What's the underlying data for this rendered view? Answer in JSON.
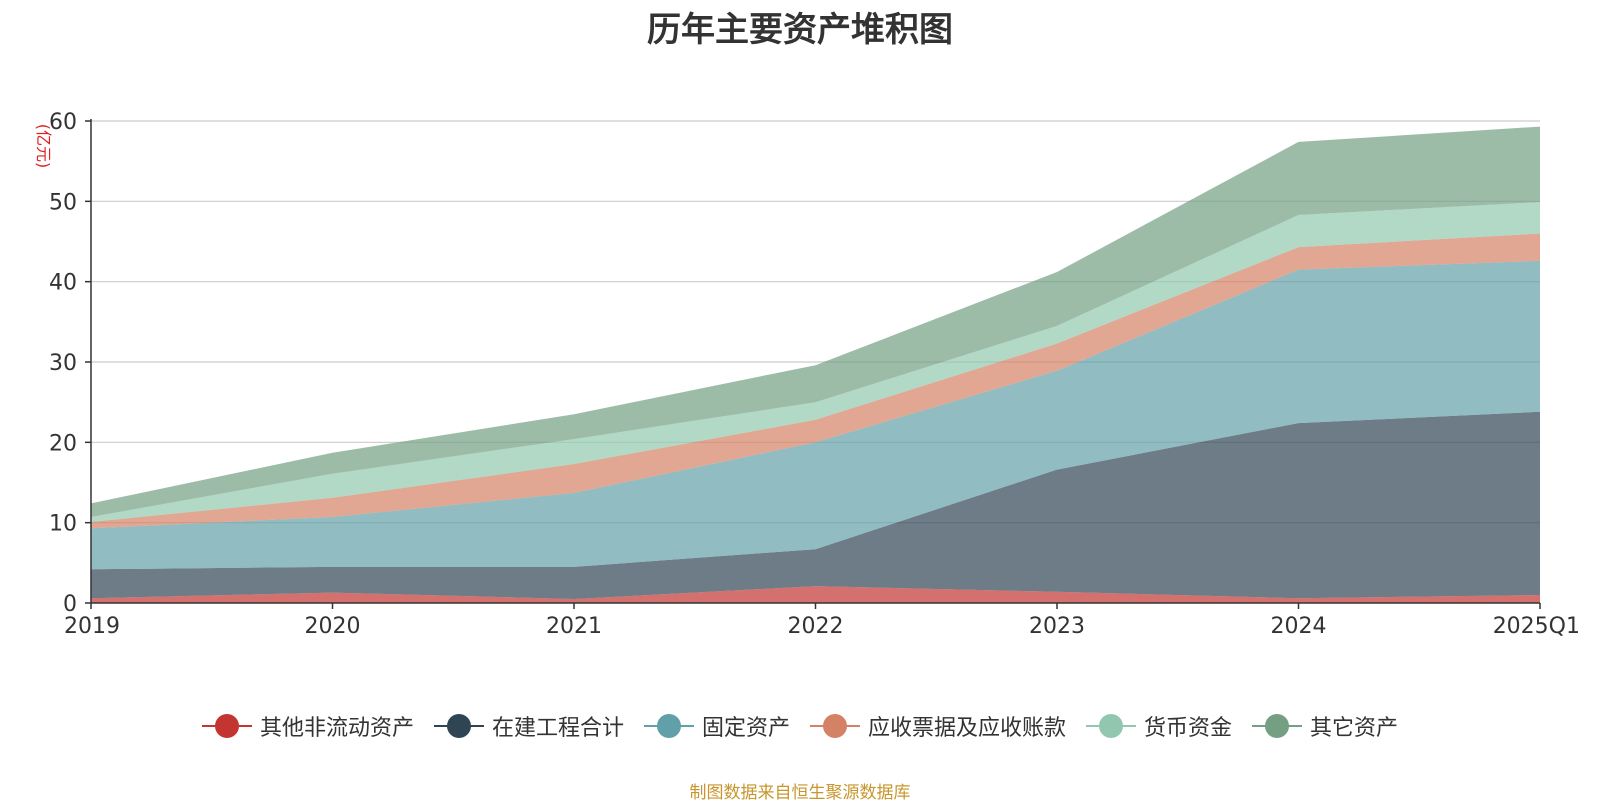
{
  "chart_data": {
    "type": "area",
    "stacked": true,
    "title": "历年主要资产堆积图",
    "ylabel": "亿元",
    "ylabel_display": "(亿元)",
    "categories": [
      "2019",
      "2020",
      "2021",
      "2022",
      "2023",
      "2024",
      "2025Q1"
    ],
    "ylim": [
      0,
      60
    ],
    "yticks": [
      "0",
      "10",
      "20",
      "30",
      "40",
      "50",
      "60"
    ],
    "grid": true,
    "legend_position": "bottom",
    "series": [
      {
        "name": "其他非流动资产",
        "color": "#c23531",
        "values": [
          0.6,
          1.3,
          0.5,
          2.1,
          1.4,
          0.6,
          1.0
        ]
      },
      {
        "name": "在建工程合计",
        "color": "#2f4554",
        "values": [
          3.6,
          3.2,
          4.0,
          4.6,
          15.2,
          21.8,
          22.8
        ]
      },
      {
        "name": "固定资产",
        "color": "#61a0a8",
        "values": [
          5.1,
          6.2,
          9.2,
          13.3,
          12.3,
          19.1,
          18.8
        ]
      },
      {
        "name": "应收票据及应收账款",
        "color": "#d48265",
        "values": [
          0.8,
          2.4,
          3.6,
          2.8,
          3.4,
          2.8,
          3.4
        ]
      },
      {
        "name": "货币资金",
        "color": "#91c7ae",
        "values": [
          0.6,
          3.0,
          3.1,
          2.2,
          2.2,
          4.0,
          3.9
        ]
      },
      {
        "name": "其它资产",
        "color": "#749f83",
        "values": [
          1.7,
          2.6,
          3.1,
          4.6,
          6.7,
          9.1,
          9.4
        ]
      }
    ]
  },
  "source_note": "制图数据来自恒生聚源数据库"
}
